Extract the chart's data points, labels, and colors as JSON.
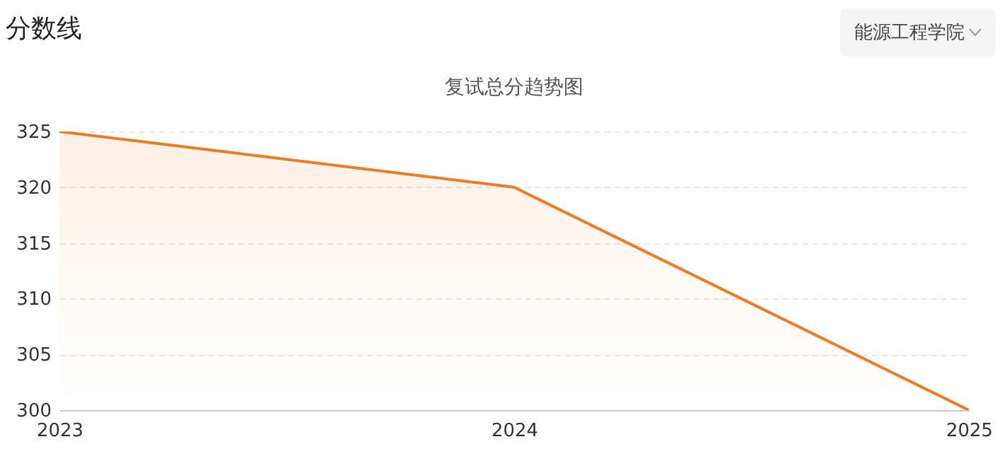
{
  "chart_data": {
    "type": "area",
    "title": "复试总分趋势图",
    "annotations": [
      "分数线",
      "能源工程学院"
    ],
    "categories": [
      "2023",
      "2024",
      "2025"
    ],
    "series": [
      {
        "color": "#f07a22",
        "values": [
          325,
          320,
          300
        ]
      }
    ],
    "ylim": [
      300,
      325
    ],
    "yticks": [
      300,
      305,
      310,
      315,
      320,
      325
    ],
    "grid": "y",
    "marker": "none",
    "line_style": "solid"
  }
}
